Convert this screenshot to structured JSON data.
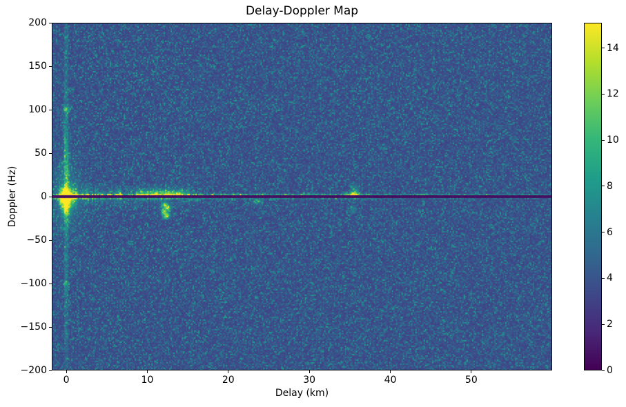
{
  "figure": {
    "background": "#ffffff"
  },
  "chart_data": {
    "type": "heatmap",
    "title": "Delay-Doppler Map",
    "xlabel": "Delay (km)",
    "ylabel": "Doppler (Hz)",
    "xlim": [
      -1.8,
      59.9
    ],
    "ylim": [
      -200,
      200
    ],
    "grid": false,
    "xticks": {
      "values": [
        0,
        10,
        20,
        30,
        40,
        50
      ],
      "labels": [
        "0",
        "10",
        "20",
        "30",
        "40",
        "50"
      ]
    },
    "yticks": {
      "values": [
        200,
        150,
        100,
        50,
        0,
        -50,
        -100,
        -150,
        -200
      ],
      "labels": [
        "200",
        "150",
        "100",
        "50",
        "0",
        "−50",
        "−100",
        "−150",
        "−200"
      ]
    },
    "colorbar": {
      "vmin": 0,
      "vmax": 15.1,
      "ticks": {
        "values": [
          0,
          2,
          4,
          6,
          8,
          10,
          12,
          14
        ],
        "labels": [
          "0",
          "2",
          "4",
          "6",
          "8",
          "10",
          "12",
          "14"
        ]
      }
    },
    "colormap": {
      "name": "viridis",
      "stops": [
        "#440154",
        "#482878",
        "#3e4989",
        "#31688e",
        "#26828e",
        "#1f9e89",
        "#35b779",
        "#6ece58",
        "#b5de2b",
        "#fde725"
      ]
    },
    "noise": {
      "base": 3.0,
      "exp_scale": 1.0,
      "cap": 8.2,
      "seed": 42,
      "column_seed": 1337
    },
    "features": [
      {
        "type": "vertical_stripe",
        "delay_km": 0,
        "halfwidth_km": 0.25,
        "amp": 2.6,
        "doppler_decay_hz": 100
      },
      {
        "type": "sideband",
        "f_min": 1,
        "f_max": 16,
        "f_scale_hz": 6,
        "d_max": 16,
        "delay_decay_km": 18,
        "amp": 9
      },
      {
        "type": "sideband",
        "f_min": -16,
        "f_max": -1,
        "f_scale_hz": 5,
        "d_max": 16.5,
        "delay_decay_km": 13,
        "amp": 7.5
      },
      {
        "type": "bright_line",
        "doppler_hz": 1.6,
        "halfwidth_hz": 1.2,
        "amp": 4.5,
        "delay_decay_km": 55,
        "floor": 1.0
      },
      {
        "type": "bright_line",
        "doppler_hz": -1.7,
        "halfwidth_hz": 1.2,
        "amp": 3.2,
        "delay_decay_km": 26,
        "floor": 0.35
      },
      {
        "type": "spotty_band",
        "d_min": 16,
        "d_max": 38,
        "f_abs_max": 5,
        "amp": 2.4
      },
      {
        "type": "blob",
        "d": 0,
        "f": 0,
        "sd": 0.5,
        "sf": 6,
        "amp": 12
      },
      {
        "type": "blob",
        "d": 0,
        "f": 0,
        "sd": 1.2,
        "sf": 25,
        "amp": 2.5
      },
      {
        "type": "blob",
        "d": 0,
        "f": 30,
        "sd": 0.3,
        "sf": 35,
        "amp": 2.2
      },
      {
        "type": "blob",
        "d": 0,
        "f": -12,
        "sd": 0.4,
        "sf": 7,
        "amp": 6
      },
      {
        "type": "blob",
        "d": 0,
        "f": 100,
        "sd": 0.3,
        "sf": 2.5,
        "amp": 5
      },
      {
        "type": "blob",
        "d": 0,
        "f": -100,
        "sd": 0.3,
        "sf": 2,
        "amp": 3
      },
      {
        "type": "blob",
        "d": 9.8,
        "f": 3,
        "sd": 0.8,
        "sf": 3,
        "amp": 5
      },
      {
        "type": "blob",
        "d": 12.2,
        "f": 4,
        "sd": 1.2,
        "sf": 3,
        "amp": 5
      },
      {
        "type": "blob",
        "d": 14,
        "f": 3,
        "sd": 0.8,
        "sf": 2.5,
        "amp": 4
      },
      {
        "type": "blob",
        "d": 12.1,
        "f": -9,
        "sd": 0.25,
        "sf": 2,
        "amp": 7
      },
      {
        "type": "blob",
        "d": 12.5,
        "f": -13,
        "sd": 0.3,
        "sf": 2.5,
        "amp": 8
      },
      {
        "type": "blob",
        "d": 12.0,
        "f": -17,
        "sd": 0.25,
        "sf": 2,
        "amp": 7
      },
      {
        "type": "blob",
        "d": 12.4,
        "f": -21,
        "sd": 0.3,
        "sf": 2,
        "amp": 8
      },
      {
        "type": "blob",
        "d": 12.2,
        "f": -24,
        "sd": 0.25,
        "sf": 1.5,
        "amp": 6
      },
      {
        "type": "blob",
        "d": 35.5,
        "f": 2,
        "sd": 0.5,
        "sf": 2.5,
        "amp": 8
      },
      {
        "type": "blob",
        "d": 35.5,
        "f": 8,
        "sd": 0.3,
        "sf": 5,
        "amp": 3
      },
      {
        "type": "blob",
        "d": 35.3,
        "f": -15,
        "sd": 0.3,
        "sf": 3,
        "amp": 3
      },
      {
        "type": "blob",
        "d": 23.5,
        "f": -6,
        "sd": 0.4,
        "sf": 2,
        "amp": 4
      },
      {
        "type": "blob",
        "d": 44,
        "f": 2,
        "sd": 0.5,
        "sf": 1.5,
        "amp": 3
      },
      {
        "type": "dark_line",
        "doppler_hz": 0,
        "halfwidth_hz": 0.8,
        "value": 0.4
      }
    ]
  }
}
